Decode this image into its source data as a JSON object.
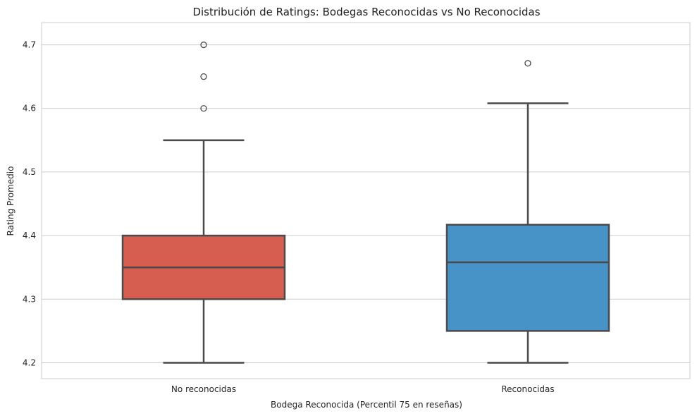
{
  "chart_data": {
    "type": "box",
    "title": "Distribución de Ratings: Bodegas Reconocidas vs No Reconocidas",
    "xlabel": "Bodega Reconocida (Percentil 75 en reseñas)",
    "ylabel": "Rating Promedio",
    "ylim": [
      4.175,
      4.735
    ],
    "yticks": [
      4.2,
      4.3,
      4.4,
      4.5,
      4.6,
      4.7
    ],
    "ytick_labels": [
      "4.2",
      "4.3",
      "4.4",
      "4.5",
      "4.6",
      "4.7"
    ],
    "grid": "horizontal",
    "categories": [
      "No reconocidas",
      "Reconocidas"
    ],
    "boxes": [
      {
        "category": "No reconocidas",
        "color": "#d65e50",
        "whisker_low": 4.2,
        "q1": 4.3,
        "median": 4.35,
        "q3": 4.4,
        "whisker_high": 4.55,
        "outliers": [
          4.6,
          4.65,
          4.7
        ]
      },
      {
        "category": "Reconocidas",
        "color": "#4793c8",
        "whisker_low": 4.2,
        "q1": 4.25,
        "median": 4.358,
        "q3": 4.417,
        "whisker_high": 4.608,
        "outliers": [
          4.671
        ]
      }
    ]
  }
}
